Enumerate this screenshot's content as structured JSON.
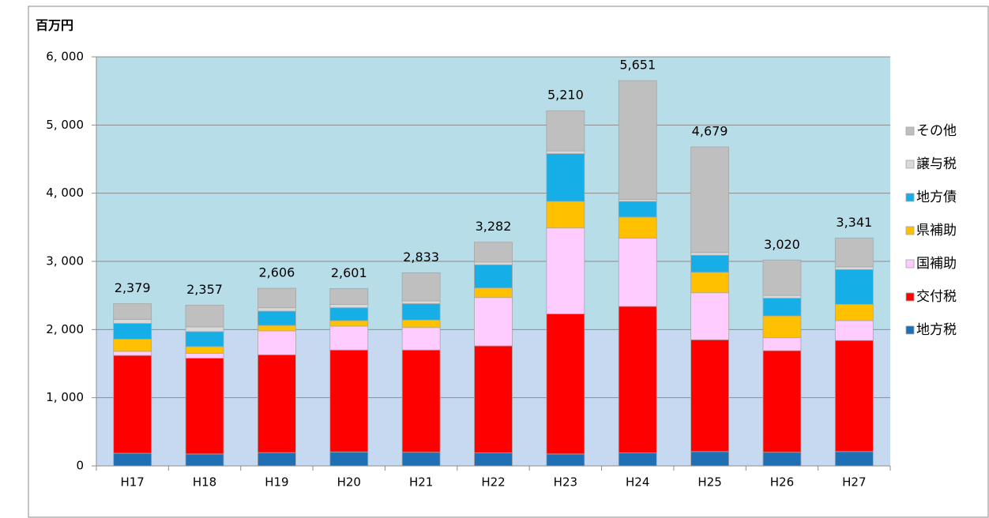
{
  "chart_data": {
    "type": "stacked_bar",
    "y_label": "百万円",
    "categories": [
      "H17",
      "H18",
      "H19",
      "H20",
      "H21",
      "H22",
      "H23",
      "H24",
      "H25",
      "H26",
      "H27"
    ],
    "series": [
      {
        "name": "地方税",
        "color": "#1f6fb5",
        "values": [
          185,
          175,
          195,
          205,
          200,
          190,
          175,
          190,
          210,
          200,
          210
        ]
      },
      {
        "name": "交付税",
        "color": "#ff0000",
        "values": [
          1435,
          1405,
          1435,
          1495,
          1500,
          1570,
          2055,
          2150,
          1640,
          1490,
          1630
        ]
      },
      {
        "name": "国補助",
        "color": "#ffccff",
        "values": [
          60,
          70,
          350,
          350,
          330,
          710,
          1260,
          1000,
          690,
          190,
          290
        ]
      },
      {
        "name": "県補助",
        "color": "#ffc000",
        "values": [
          180,
          100,
          80,
          80,
          110,
          140,
          390,
          310,
          300,
          320,
          240
        ]
      },
      {
        "name": "地方債",
        "color": "#15aee6",
        "values": [
          230,
          220,
          210,
          190,
          240,
          340,
          700,
          230,
          250,
          260,
          510
        ]
      },
      {
        "name": "譲与税",
        "color": "#d9d9d9",
        "values": [
          60,
          70,
          50,
          50,
          40,
          40,
          40,
          30,
          40,
          40,
          40
        ]
      },
      {
        "name": "その他",
        "color": "#bfbfbf",
        "values": [
          229,
          317,
          286,
          231,
          413,
          292,
          590,
          1741,
          1549,
          520,
          421
        ]
      }
    ],
    "totals": [
      2379,
      2357,
      2606,
      2601,
      2833,
      3282,
      5210,
      5651,
      4679,
      3020,
      3341
    ],
    "total_labels": [
      "2,379",
      "2,357",
      "2,606",
      "2,601",
      "2,833",
      "3,282",
      "5,210",
      "5,651",
      "4,679",
      "3,020",
      "3,341"
    ],
    "ylim": [
      0,
      6000
    ],
    "yticks": [
      0,
      {
        "value": 1000,
        "label": "1, 000"
      },
      {
        "value": 2000,
        "label": "2, 000"
      },
      {
        "value": 3000,
        "label": "3, 000"
      },
      {
        "value": 4000,
        "label": "4, 000"
      },
      {
        "value": 5000,
        "label": "5, 000"
      },
      {
        "value": 6000,
        "label": "6, 000"
      }
    ],
    "background_bands": [
      {
        "from": 0,
        "to": 2000,
        "color": "#c6d9f0"
      },
      {
        "from": 2000,
        "to": 6000,
        "color": "#b7dde8"
      }
    ],
    "grid": true,
    "legend": "right"
  }
}
